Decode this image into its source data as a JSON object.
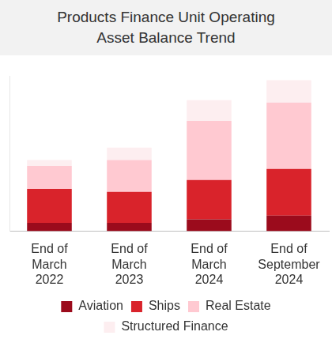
{
  "chart_data": {
    "type": "bar",
    "title": "Products Finance Unit Operating Asset Balance Trend",
    "categories": [
      "End of March 2022",
      "End of March 2023",
      "End of March 2024",
      "End of September 2024"
    ],
    "series": [
      {
        "name": "Aviation",
        "color": "#9b0b1c",
        "values": [
          11,
          11,
          16,
          21
        ]
      },
      {
        "name": "Ships",
        "color": "#d9232b",
        "values": [
          46,
          42,
          53,
          63
        ]
      },
      {
        "name": "Real Estate",
        "color": "#ffc9d1",
        "values": [
          31,
          43,
          80,
          90
        ]
      },
      {
        "name": "Structured Finance",
        "color": "#fdeef0",
        "values": [
          8,
          17,
          28,
          30
        ]
      }
    ],
    "ylim": [
      0,
      210
    ],
    "stacked": true,
    "legend": "bottom",
    "grid": false,
    "tick_labels": "x"
  }
}
